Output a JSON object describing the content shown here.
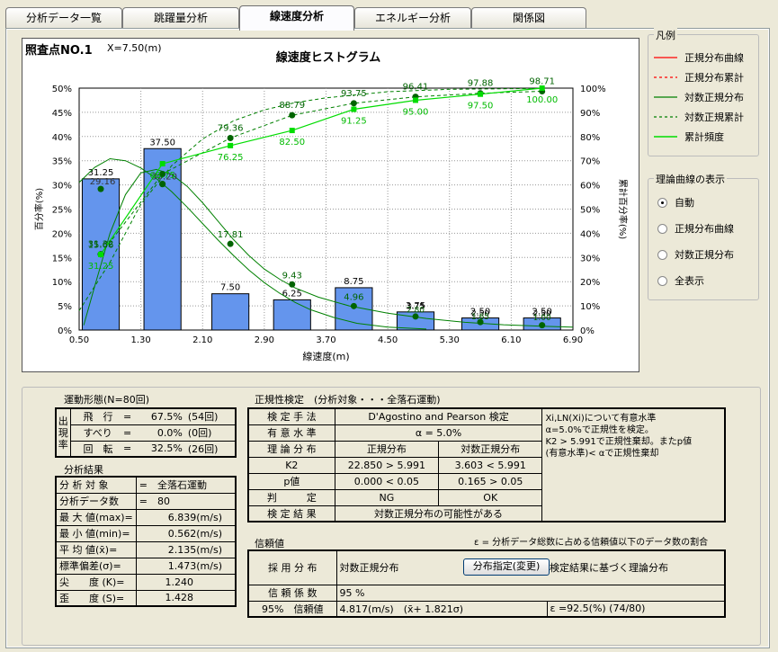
{
  "tabs": [
    {
      "label": "分析データ一覧"
    },
    {
      "label": "跳躍量分析"
    },
    {
      "label": "線速度分析"
    },
    {
      "label": "エネルギー分析"
    },
    {
      "label": "関係図"
    }
  ],
  "active_tab": 2,
  "header": {
    "point": "照査点NO.1",
    "x_label": "X=7.50(m)"
  },
  "legend": {
    "title": "凡例",
    "items": [
      "正規分布曲線",
      "正規分布累計",
      "対数正規分布",
      "対数正規累計",
      "累計頻度"
    ]
  },
  "display": {
    "title": "理論曲線の表示",
    "options": [
      "自動",
      "正規分布曲線",
      "対数正規分布",
      "全表示"
    ],
    "selected": 0
  },
  "chart_data": {
    "type": "bar",
    "title": "線速度ヒストグラム",
    "xlabel": "線速度(m)",
    "ylabel": "百分率(%)",
    "y2label": "累計百分率(%)",
    "x_ticks": [
      "0.50",
      "1.30",
      "2.10",
      "2.90",
      "3.70",
      "4.50",
      "5.30",
      "6.10",
      "6.90"
    ],
    "y_ticks": [
      "0%",
      "5%",
      "10%",
      "15%",
      "20%",
      "25%",
      "30%",
      "35%",
      "40%",
      "45%",
      "50%"
    ],
    "y2_ticks": [
      "0%",
      "10%",
      "20%",
      "30%",
      "40%",
      "50%",
      "60%",
      "70%",
      "80%",
      "90%",
      "100%"
    ],
    "xlim": [
      0.5,
      6.9
    ],
    "ylim": [
      0,
      50
    ],
    "y2lim": [
      0,
      100
    ],
    "bin_centers": [
      0.78,
      1.58,
      2.46,
      3.26,
      4.06,
      4.86,
      5.7,
      6.5
    ],
    "bar_width": 0.48,
    "bars": [
      31.25,
      37.5,
      7.5,
      6.25,
      8.75,
      3.75,
      2.5,
      2.5
    ],
    "bar_labels": [
      "31.25",
      "37.50",
      "7.50",
      "6.25",
      "8.75",
      "3.75",
      "2.50",
      "2.50"
    ],
    "normal_curve": [
      [
        0.5,
        30.5
      ],
      [
        0.7,
        33.6
      ],
      [
        0.9,
        35.4
      ],
      [
        1.1,
        35.0
      ],
      [
        1.3,
        33.5
      ],
      [
        1.5,
        31.3
      ],
      [
        1.7,
        28.6
      ],
      [
        1.9,
        25.4
      ],
      [
        2.1,
        22.0
      ],
      [
        2.3,
        18.6
      ],
      [
        2.5,
        15.4
      ],
      [
        2.7,
        12.4
      ],
      [
        2.9,
        9.8
      ],
      [
        3.1,
        7.6
      ],
      [
        3.3,
        5.7
      ],
      [
        3.5,
        4.2
      ],
      [
        3.8,
        2.6
      ],
      [
        4.1,
        1.4
      ],
      [
        4.5,
        0.6
      ],
      [
        5.0,
        0.2
      ]
    ],
    "lognormal_curve": [
      [
        0.56,
        1.0
      ],
      [
        0.7,
        9.0
      ],
      [
        0.9,
        20.0
      ],
      [
        1.1,
        28.0
      ],
      [
        1.3,
        32.5
      ],
      [
        1.5,
        33.2
      ],
      [
        1.7,
        32.2
      ],
      [
        1.9,
        29.7
      ],
      [
        2.1,
        26.3
      ],
      [
        2.3,
        22.5
      ],
      [
        2.5,
        18.7
      ],
      [
        2.7,
        15.4
      ],
      [
        2.9,
        12.6
      ],
      [
        3.1,
        10.5
      ],
      [
        3.3,
        8.7
      ],
      [
        3.6,
        6.8
      ],
      [
        4.0,
        5.0
      ],
      [
        4.5,
        3.5
      ],
      [
        5.0,
        2.4
      ],
      [
        5.5,
        1.6
      ],
      [
        6.0,
        1.1
      ],
      [
        6.5,
        0.8
      ],
      [
        6.9,
        0.6
      ]
    ],
    "lognormal_points": [
      [
        0.78,
        15.66
      ],
      [
        1.58,
        30.15
      ],
      [
        2.46,
        17.81
      ],
      [
        3.26,
        9.43
      ],
      [
        4.06,
        4.96
      ],
      [
        4.86,
        2.8
      ],
      [
        5.7,
        1.65
      ],
      [
        6.5,
        1.0
      ]
    ],
    "lognormal_point_labels": [
      "15.66",
      "",
      "17.81",
      "9.43",
      "4.96",
      "",
      "",
      ""
    ],
    "normal_points": [
      [
        0.78,
        29.16
      ],
      [
        1.58,
        30.2
      ]
    ],
    "normal_point_labels": [
      "29.16",
      "30.20"
    ],
    "cum_freq": [
      [
        0.78,
        31.25
      ],
      [
        1.58,
        68.75
      ],
      [
        2.46,
        76.25
      ],
      [
        3.26,
        82.5
      ],
      [
        4.06,
        91.25
      ],
      [
        4.86,
        95.0
      ],
      [
        5.7,
        97.5
      ],
      [
        6.5,
        100.0
      ]
    ],
    "cum_freq_labels": [
      "31.25",
      "68.75",
      "76.25",
      "82.50",
      "91.25",
      "95.00",
      "97.50",
      "100.00"
    ],
    "cum_lognormal": [
      [
        0.78,
        31.32
      ],
      [
        1.58,
        64.5
      ],
      [
        2.46,
        79.36
      ],
      [
        3.26,
        88.79
      ],
      [
        4.06,
        93.75
      ],
      [
        4.86,
        96.41
      ],
      [
        5.7,
        97.88
      ],
      [
        6.5,
        98.71
      ]
    ],
    "cum_lognormal_labels": [
      "31.32",
      "",
      "79.36",
      "88.79",
      "93.75",
      "96.41",
      "97.88",
      "98.71"
    ],
    "cum_normal": [
      [
        0.5,
        8
      ],
      [
        0.9,
        28
      ],
      [
        1.3,
        52
      ],
      [
        1.7,
        68
      ],
      [
        2.1,
        79
      ],
      [
        2.5,
        86.5
      ],
      [
        2.9,
        91
      ],
      [
        3.3,
        94
      ],
      [
        3.7,
        96
      ],
      [
        4.5,
        98.5
      ],
      [
        5.3,
        99.5
      ],
      [
        6.5,
        99.9
      ]
    ],
    "small_labels": [
      "3.75",
      "2.80",
      "2.50",
      "1.65",
      "2.50",
      "1.00"
    ]
  },
  "motion": {
    "title": "運動形態(N=",
    "n": "80回",
    "close": ")",
    "group": "出現率",
    "rows": [
      {
        "name": "飛　行",
        "eq": "=",
        "pct": "67.5%",
        "cnt": "(54回)"
      },
      {
        "name": "すべり",
        "eq": "=",
        "pct": "0.0%",
        "cnt": "(0回)"
      },
      {
        "name": "回　転",
        "eq": "=",
        "pct": "32.5%",
        "cnt": "(26回)"
      }
    ]
  },
  "results": {
    "title": "分析結果",
    "rows": [
      {
        "k": "分 析 対 象",
        "eq": "=",
        "v": "全落石運動"
      },
      {
        "k": "分析データ数",
        "eq": "=",
        "v": "80"
      },
      {
        "k": "最 大 値(max)=",
        "eq": "",
        "v": "6.839(m/s)"
      },
      {
        "k": "最 小 値(min)=",
        "eq": "",
        "v": "0.562(m/s)"
      },
      {
        "k": "平 均 値(x̄)=",
        "eq": "",
        "v": "2.135(m/s)"
      },
      {
        "k": "標準偏差(σ)=",
        "eq": "",
        "v": "1.473(m/s)"
      },
      {
        "k": "尖　　度 (K)=",
        "eq": "",
        "v": "1.240"
      },
      {
        "k": "歪　　度 (S)=",
        "eq": "",
        "v": "1.428"
      }
    ]
  },
  "normality": {
    "title": "正規性検定　(分析対象・・・全落石運動)",
    "method_label": "検 定 手 法",
    "method": "D'Agostino and Pearson 検定",
    "level_label": "有 意 水 準",
    "level": "α = 5.0%",
    "dist_label": "理 論 分 布",
    "col1": "正規分布",
    "col2": "対数正規分布",
    "k2_label": "K2",
    "k2_n": "22.850 > 5.991",
    "k2_ln": "3.603 < 5.991",
    "p_label": "p値",
    "p_n": "0.000 < 0.05",
    "p_ln": "0.165 > 0.05",
    "judge_label": "判　　　定",
    "judge_n": "NG",
    "judge_ln": "OK",
    "result_label": "検 定 結 果",
    "result": "対数正規分布の可能性がある",
    "note1": "Xi,LN(Xi)について有意水準",
    "note2": "α=5.0%で正規性を検定。",
    "note3": "K2 > 5.991で正規性棄却。またp値",
    "note4": "(有意水準)< αで正規性棄却"
  },
  "reliability": {
    "title": "信頼値",
    "note": "ε = 分析データ総数に占める信頼値以下のデータ数の割合",
    "adopt_label": "採 用 分 布",
    "adopt": "対数正規分布",
    "button": "分布指定(変更)",
    "basis": "検定結果に基づく理論分布",
    "coef_label": "信 頼 係 数",
    "coef": "95 %",
    "val_label": "95%　信頼値",
    "val": "4.817(m/s)　(x̄+ 1.821σ)",
    "eps": "ε =92.5(%) (74/80)"
  }
}
